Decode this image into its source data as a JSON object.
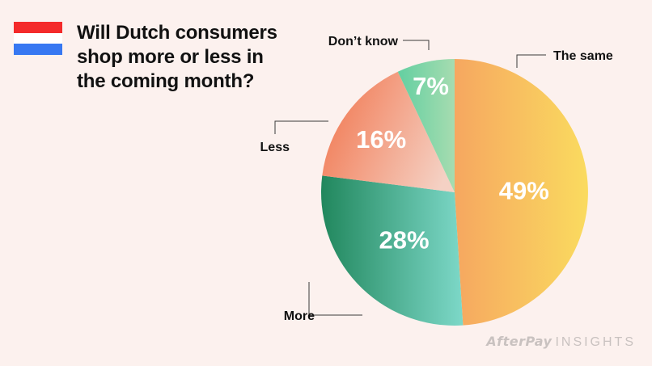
{
  "header": {
    "title_lines": [
      "Will Dutch consumers",
      "shop more or less in",
      "the coming month?"
    ],
    "flag_colors": [
      "#f42a2a",
      "#ffffff",
      "#3778f2"
    ]
  },
  "chart_data": {
    "type": "pie",
    "title": "Will Dutch consumers shop more or less in the coming month?",
    "unit": "%",
    "slices": [
      {
        "label": "The same",
        "value": 49,
        "value_label": "49%",
        "colors": [
          "#f6a760",
          "#fadb5f"
        ]
      },
      {
        "label": "More",
        "value": 28,
        "value_label": "28%",
        "colors": [
          "#21875d",
          "#7dd8c8"
        ]
      },
      {
        "label": "Less",
        "value": 16,
        "value_label": "16%",
        "colors": [
          "#f27b55",
          "#f4d1c4"
        ]
      },
      {
        "label": "Don’t know",
        "value": 7,
        "value_label": "7%",
        "colors": [
          "#63cfa1",
          "#a6dcb0"
        ]
      }
    ]
  },
  "watermark": {
    "brand": "AfterPay",
    "suffix": "INSIGHTS"
  }
}
